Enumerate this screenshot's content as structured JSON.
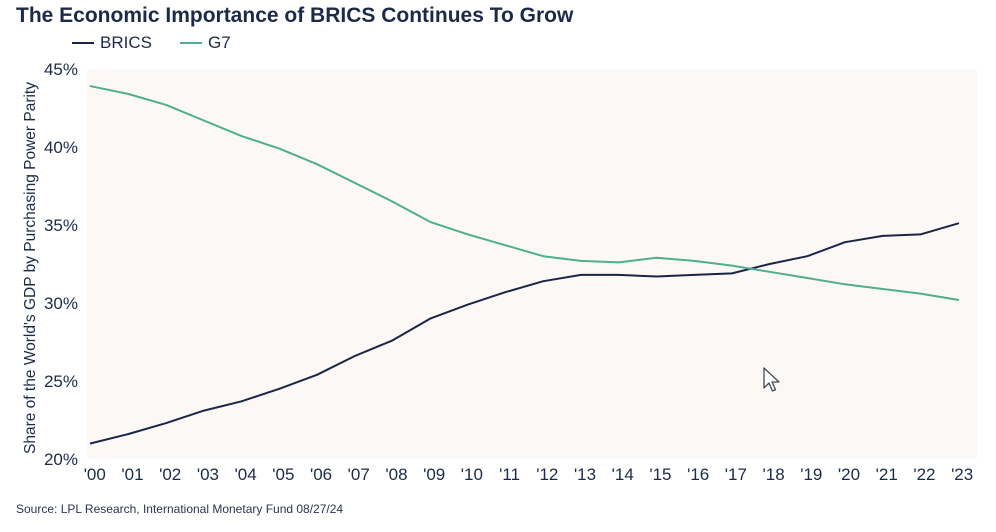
{
  "chart_data": {
    "type": "line",
    "title": "The Economic Importance of BRICS Continues To Grow",
    "ylabel": "Share of the World's GDP by Purchasing Power Parity",
    "xlabel": "",
    "categories": [
      "'00",
      "'01",
      "'02",
      "'03",
      "'04",
      "'05",
      "'06",
      "'07",
      "'08",
      "'09",
      "'10",
      "'11",
      "'12",
      "'13",
      "'14",
      "'15",
      "'16",
      "'17",
      "'18",
      "'19",
      "'20",
      "'21",
      "'22",
      "'23"
    ],
    "x": [
      2000,
      2001,
      2002,
      2003,
      2004,
      2005,
      2006,
      2007,
      2008,
      2009,
      2010,
      2011,
      2012,
      2013,
      2014,
      2015,
      2016,
      2017,
      2018,
      2019,
      2020,
      2021,
      2022,
      2023
    ],
    "xlim": [
      1999.9,
      2023.5
    ],
    "ylim": [
      20,
      45
    ],
    "yticks": [
      20,
      25,
      30,
      35,
      40,
      45
    ],
    "ytick_labels": [
      "20%",
      "25%",
      "30%",
      "35%",
      "40%",
      "45%"
    ],
    "series": [
      {
        "name": "BRICS",
        "color": "#1b2547",
        "values": [
          21.0,
          21.6,
          22.3,
          23.1,
          23.7,
          24.5,
          25.4,
          26.6,
          27.6,
          29.0,
          29.9,
          30.7,
          31.4,
          31.8,
          31.8,
          31.7,
          31.8,
          31.9,
          32.5,
          33.0,
          33.9,
          34.3,
          34.4,
          35.1
        ]
      },
      {
        "name": "G7",
        "color": "#4fae8f",
        "values": [
          43.9,
          43.4,
          42.7,
          41.7,
          40.7,
          39.9,
          38.9,
          37.7,
          36.5,
          35.2,
          34.4,
          33.7,
          33.0,
          32.7,
          32.6,
          32.9,
          32.7,
          32.4,
          32.0,
          31.6,
          31.2,
          30.9,
          30.6,
          30.2
        ]
      }
    ],
    "grid": false,
    "legend": "top-left",
    "plot_background": "#fbf8f5"
  },
  "source_note": "Source: LPL Research, International Monetary Fund 08/27/24"
}
